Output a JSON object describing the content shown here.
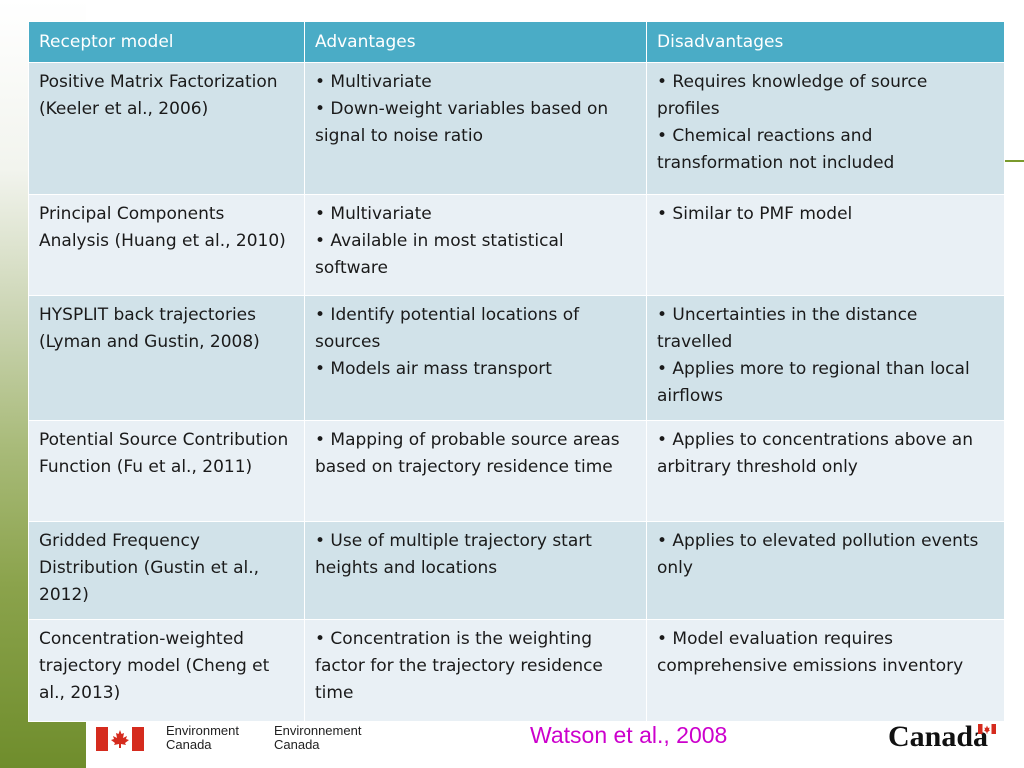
{
  "table": {
    "headers": [
      "Receptor model",
      "Advantages",
      "Disadvantages"
    ],
    "rows": [
      {
        "model": "Positive Matrix Factorization (Keeler et al., 2006)",
        "advantages": [
          "• Multivariate",
          "• Down-weight variables based on signal to noise ratio"
        ],
        "disadvantages": [
          "• Requires knowledge of source profiles",
          "• Chemical reactions and transformation not included"
        ]
      },
      {
        "model": "Principal Components Analysis (Huang et al., 2010)",
        "advantages": [
          "• Multivariate",
          "• Available in most statistical software"
        ],
        "disadvantages": [
          "• Similar to PMF model"
        ]
      },
      {
        "model": "HYSPLIT back trajectories (Lyman and Gustin, 2008)",
        "advantages": [
          "• Identify potential locations of sources",
          "• Models air mass transport"
        ],
        "disadvantages": [
          "• Uncertainties in the distance travelled",
          "• Applies more to regional than local airflows"
        ]
      },
      {
        "model": "Potential Source Contribution Function (Fu et al., 2011)",
        "advantages": [
          "• Mapping of probable source areas based on trajectory residence time"
        ],
        "disadvantages": [
          "• Applies to concentrations above an arbitrary threshold only"
        ]
      },
      {
        "model": "Gridded Frequency Distribution (Gustin et al., 2012)",
        "advantages": [
          "• Use of multiple trajectory start heights and locations"
        ],
        "disadvantages": [
          "• Applies to elevated pollution events only"
        ]
      },
      {
        "model": "Concentration-weighted trajectory model (Cheng et al., 2013)",
        "advantages": [
          "• Concentration is the weighting factor for the trajectory residence time"
        ],
        "disadvantages": [
          "• Model evaluation requires comprehensive emissions inventory"
        ]
      }
    ]
  },
  "footer": {
    "dept_en_line1": "Environment",
    "dept_en_line2": "Canada",
    "dept_fr_line1": "Environnement",
    "dept_fr_line2": "Canada",
    "citation": "Watson et al., 2008",
    "wordmark": "Canada"
  },
  "colors": {
    "header_bg": "#4aacc6",
    "row_odd": "#d1e2e9",
    "row_even": "#e9f0f5",
    "citation": "#cc00cc",
    "flag_red": "#d52b1e"
  },
  "icons": [
    "canada-flag-icon",
    "maple-leaf-icon"
  ]
}
